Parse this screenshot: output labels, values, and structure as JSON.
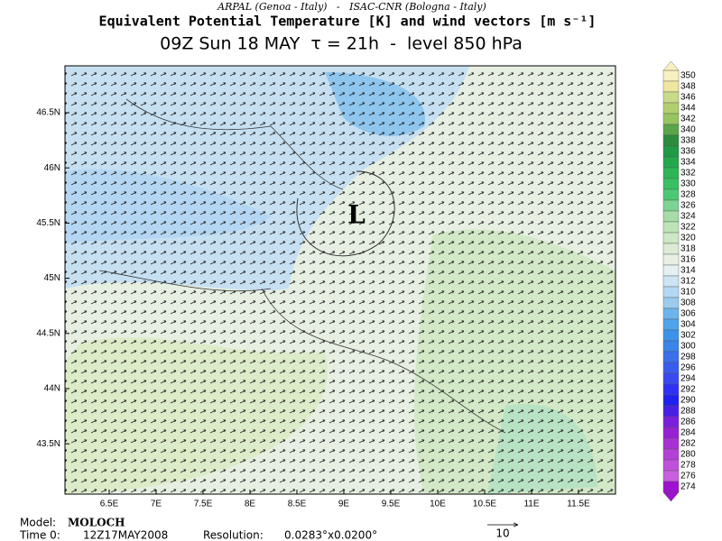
{
  "header": {
    "institutions": "ARPAL (Genoa - Italy)   -   ISAC-CNR (Bologna - Italy)",
    "title": "Equivalent Potential Temperature [K] and wind vectors [m s⁻¹]",
    "subtitle": "09Z Sun 18 MAY  τ = 21h  -  level 850 hPa"
  },
  "map": {
    "lat_labels": [
      "46.5N",
      "46N",
      "45.5N",
      "45N",
      "44.5N",
      "44N",
      "43.5N"
    ],
    "lon_labels": [
      "6.5E",
      "7E",
      "7.5E",
      "8E",
      "8.5E",
      "9E",
      "9.5E",
      "10E",
      "10.5E",
      "11E",
      "11.5E"
    ],
    "low_label": "L"
  },
  "colorbar": {
    "levels": [
      350,
      348,
      346,
      344,
      342,
      340,
      338,
      336,
      334,
      332,
      330,
      328,
      326,
      324,
      322,
      320,
      318,
      316,
      314,
      312,
      310,
      308,
      306,
      304,
      302,
      300,
      298,
      296,
      294,
      292,
      290,
      288,
      286,
      284,
      282,
      280,
      278,
      276,
      274
    ],
    "colors": [
      "#f8f0c0",
      "#f0e6a0",
      "#c8dc88",
      "#b0d070",
      "#98c460",
      "#5aa44a",
      "#2a8c3c",
      "#1f9a45",
      "#24a84c",
      "#2cb656",
      "#38c062",
      "#4cc874",
      "#7cd494",
      "#a8dca8",
      "#bce4b8",
      "#cce8c4",
      "#dcecd4",
      "#e8f0e4",
      "#e4f0f4",
      "#cce4f4",
      "#b4d8f4",
      "#9ccbf0",
      "#6cb4ec",
      "#50a4ec",
      "#3c94ea",
      "#3a84ea",
      "#3a70ec",
      "#3a5cee",
      "#3a48f0",
      "#2e30f4",
      "#2020f0",
      "#4a20e6",
      "#7a20dc",
      "#9820d4",
      "#a830d4",
      "#b440d8",
      "#c050dc",
      "#c860e0",
      "#a010d0"
    ]
  },
  "footer": {
    "model_label": "Model:",
    "model": "MOLOCH",
    "time_label": "Time 0:",
    "time": "12Z17MAY2008",
    "resolution_label": "Resolution:",
    "resolution": "0.0283°x0.0200°",
    "ref_vector": "10"
  }
}
